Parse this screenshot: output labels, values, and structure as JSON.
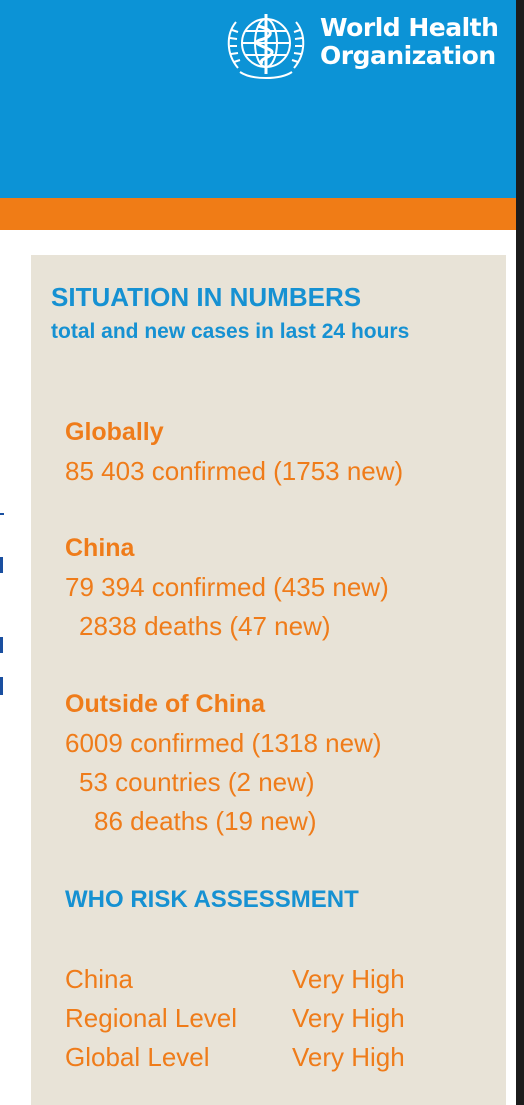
{
  "logo": {
    "line1": "World Health",
    "line2": "Organization",
    "emblem": "who-emblem-icon"
  },
  "colors": {
    "header_blue": "#0c93d6",
    "accent_orange": "#f07c16",
    "panel_bg": "#e8e3d7",
    "heading_blue": "#1691d2",
    "text_orange": "#ef7c1a"
  },
  "panel": {
    "title": "SITUATION IN NUMBERS",
    "subtitle": "total and new cases in last 24 hours",
    "sections": {
      "global": {
        "heading": "Globally",
        "confirmed": "85 403 confirmed (1753 new)"
      },
      "china": {
        "heading": "China",
        "confirmed": "79 394 confirmed (435 new)",
        "deaths": "2838 deaths (47 new)"
      },
      "outside": {
        "heading": "Outside of China",
        "confirmed": "6009 confirmed (1318 new)",
        "countries": "53 countries (2 new)",
        "deaths": "86 deaths (19 new)"
      }
    },
    "risk": {
      "heading": "WHO RISK ASSESSMENT",
      "rows": [
        {
          "level": "China",
          "value": "Very High"
        },
        {
          "level": "Regional Level",
          "value": "Very High"
        },
        {
          "level": "Global Level",
          "value": "Very High"
        }
      ]
    }
  }
}
